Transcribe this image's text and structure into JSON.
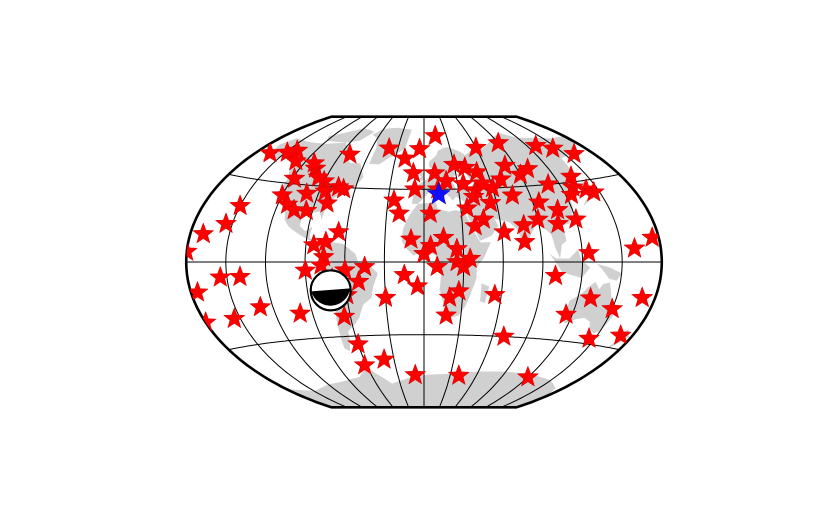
{
  "map": {
    "projection": "Winkel Tripel",
    "background_color": "#ffffff",
    "land_color": "#d0d0d0",
    "graticule": {
      "meridians_deg": 30,
      "parallels_deg": 45
    },
    "station_marker": {
      "shape": "star",
      "color": "#ff0000"
    },
    "event_marker": {
      "shape": "star",
      "color": "#1010ff",
      "lon": 12.5,
      "lat": 41.9
    },
    "focal_mechanism": {
      "shape": "beachball",
      "lon": -72,
      "lat": -17,
      "compressional_color": "#000000",
      "dilatational_color": "#ffffff"
    },
    "stations": [
      [
        -165,
        60
      ],
      [
        -148,
        62
      ],
      [
        -155,
        20
      ],
      [
        -120,
        38
      ],
      [
        -112,
        33
      ],
      [
        -118,
        48
      ],
      [
        -100,
        40
      ],
      [
        -95,
        30
      ],
      [
        -85,
        42
      ],
      [
        -80,
        35
      ],
      [
        -75,
        45
      ],
      [
        -70,
        44
      ],
      [
        -90,
        48
      ],
      [
        -105,
        55
      ],
      [
        -140,
        64
      ],
      [
        -130,
        58
      ],
      [
        -110,
        58
      ],
      [
        -97,
        50
      ],
      [
        -66,
        18
      ],
      [
        -84,
        10
      ],
      [
        -76,
        3
      ],
      [
        -78,
        -2
      ],
      [
        -70,
        -10
      ],
      [
        -60,
        -5
      ],
      [
        -50,
        -12
      ],
      [
        -65,
        -33
      ],
      [
        -60,
        -50
      ],
      [
        -62,
        -63
      ],
      [
        -40,
        -60
      ],
      [
        -25,
        38
      ],
      [
        -20,
        64
      ],
      [
        -40,
        70
      ],
      [
        -10,
        14
      ],
      [
        -20,
        30
      ],
      [
        -15,
        -8
      ],
      [
        -5,
        -15
      ],
      [
        -30,
        -22
      ],
      [
        -150,
        30
      ],
      [
        -175,
        -15
      ],
      [
        -170,
        14
      ],
      [
        -140,
        -8
      ],
      [
        -130,
        -25
      ],
      [
        -100,
        -30
      ],
      [
        -155,
        -30
      ],
      [
        -180,
        5
      ],
      [
        0,
        5
      ],
      [
        10,
        -3
      ],
      [
        25,
        0
      ],
      [
        30,
        -3
      ],
      [
        35,
        2
      ],
      [
        5,
        10
      ],
      [
        15,
        15
      ],
      [
        20,
        -22
      ],
      [
        27,
        -18
      ],
      [
        18,
        -33
      ],
      [
        12,
        45
      ],
      [
        10,
        55
      ],
      [
        20,
        50
      ],
      [
        30,
        60
      ],
      [
        40,
        58
      ],
      [
        50,
        55
      ],
      [
        45,
        44
      ],
      [
        60,
        45
      ],
      [
        55,
        36
      ],
      [
        35,
        33
      ],
      [
        42,
        40
      ],
      [
        47,
        26
      ],
      [
        75,
        40
      ],
      [
        70,
        50
      ],
      [
        80,
        58
      ],
      [
        90,
        52
      ],
      [
        100,
        55
      ],
      [
        110,
        45
      ],
      [
        130,
        42
      ],
      [
        135,
        48
      ],
      [
        140,
        40
      ],
      [
        120,
        24
      ],
      [
        105,
        22
      ],
      [
        77,
        12
      ],
      [
        90,
        25
      ],
      [
        60,
        70
      ],
      [
        90,
        72
      ],
      [
        130,
        68
      ],
      [
        160,
        60
      ],
      [
        145,
        38
      ],
      [
        100,
        -8
      ],
      [
        125,
        5
      ],
      [
        115,
        -30
      ],
      [
        150,
        -25
      ],
      [
        130,
        -20
      ],
      [
        170,
        -38
      ],
      [
        145,
        -42
      ],
      [
        175,
        12
      ],
      [
        -5,
        70
      ],
      [
        15,
        78
      ],
      [
        40,
        22
      ],
      [
        -80,
        65
      ],
      [
        -75,
        12
      ],
      [
        62,
        18
      ],
      [
        78,
        22
      ],
      [
        95,
        35
      ],
      [
        -45,
        -3
      ],
      [
        -10,
        55
      ],
      [
        -180,
        -30
      ],
      [
        160,
        7
      ],
      [
        55,
        -20
      ],
      [
        70,
        -45
      ],
      [
        120,
        -68
      ],
      [
        40,
        -70
      ],
      [
        -10,
        -70
      ],
      [
        -90,
        -5
      ],
      [
        -60,
        -20
      ],
      [
        -105,
        30
      ],
      [
        145,
        65
      ],
      [
        25,
        8
      ],
      [
        5,
        30
      ],
      [
        -8,
        45
      ],
      [
        35,
        48
      ],
      [
        52,
        48
      ],
      [
        125,
        38
      ],
      [
        108,
        30
      ],
      [
        170,
        -18
      ],
      [
        -155,
        -8
      ]
    ]
  }
}
